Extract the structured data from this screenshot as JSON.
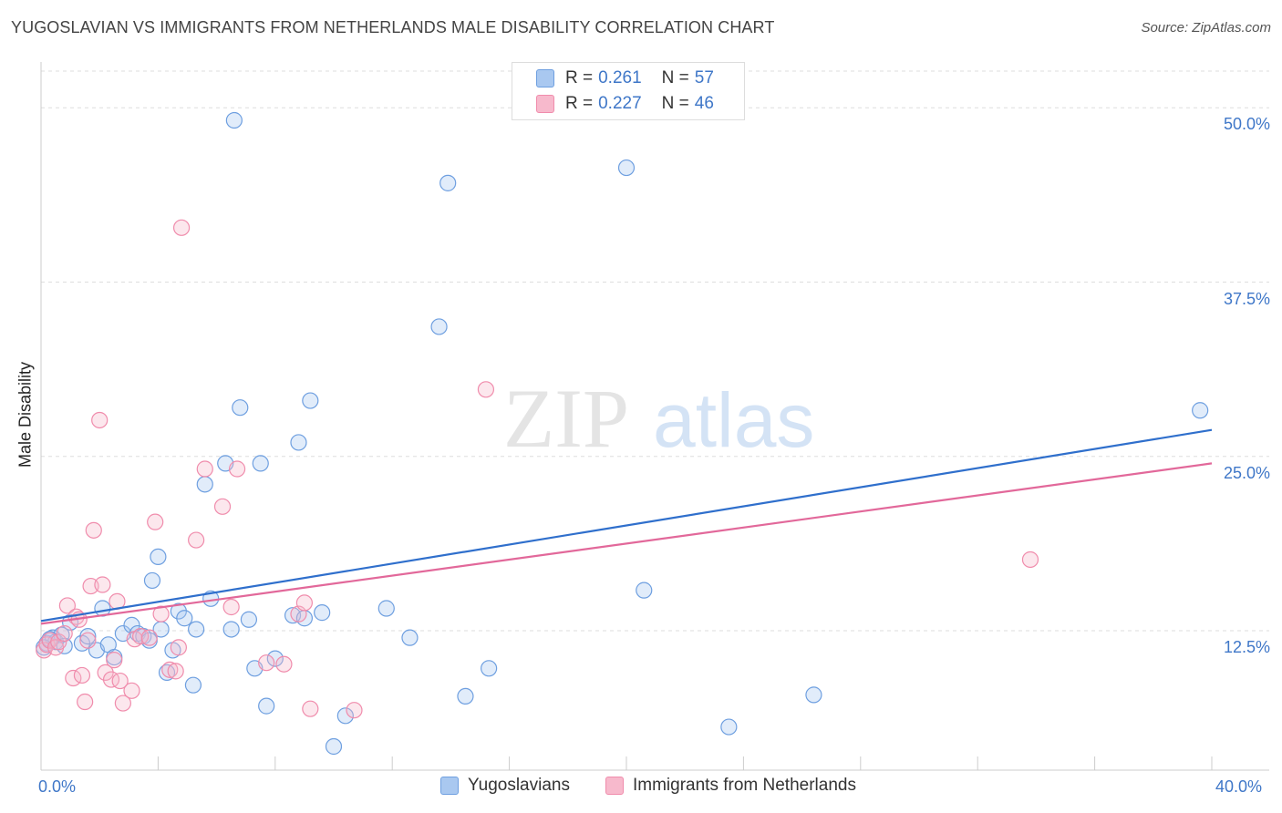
{
  "title": "YUGOSLAVIAN VS IMMIGRANTS FROM NETHERLANDS MALE DISABILITY CORRELATION CHART",
  "source": "Source: ZipAtlas.com",
  "watermark": {
    "zip": "ZIP",
    "atlas": "atlas"
  },
  "legend": {
    "r_label": "R =",
    "n_label": "N =",
    "rows": [
      {
        "r": "0.261",
        "n": "57",
        "color": "#a9c8f0"
      },
      {
        "r": "0.227",
        "n": "46",
        "color": "#f7b9cc"
      }
    ]
  },
  "chart_data": {
    "type": "scatter",
    "ylabel": "Male Disability",
    "xlim": [
      0,
      40
    ],
    "ylim": [
      2.5,
      52.5
    ],
    "x_tick_labels": [
      "0.0%",
      "40.0%"
    ],
    "y_ticks": [
      12.5,
      25.0,
      37.5,
      50.0
    ],
    "y_tick_labels": [
      "12.5%",
      "25.0%",
      "37.5%",
      "50.0%"
    ],
    "grid": true,
    "series": [
      {
        "name": "Yugoslavians",
        "color": "#6e9fe0",
        "line_color": "#2f6fcc",
        "trend": [
          [
            0,
            13.2
          ],
          [
            40,
            26.9
          ]
        ],
        "points": [
          [
            0.2,
            11.6
          ],
          [
            0.4,
            12.0
          ],
          [
            0.5,
            11.7
          ],
          [
            0.7,
            12.2
          ],
          [
            0.8,
            11.4
          ],
          [
            1.0,
            13.1
          ],
          [
            1.4,
            11.6
          ],
          [
            1.6,
            12.1
          ],
          [
            1.9,
            11.1
          ],
          [
            2.1,
            14.1
          ],
          [
            2.3,
            11.5
          ],
          [
            2.5,
            10.6
          ],
          [
            2.8,
            12.3
          ],
          [
            3.1,
            12.9
          ],
          [
            3.3,
            12.3
          ],
          [
            3.5,
            12.1
          ],
          [
            3.7,
            11.8
          ],
          [
            3.8,
            16.1
          ],
          [
            4.0,
            17.8
          ],
          [
            4.1,
            12.6
          ],
          [
            4.3,
            9.5
          ],
          [
            4.5,
            11.1
          ],
          [
            4.7,
            13.9
          ],
          [
            4.9,
            13.4
          ],
          [
            5.2,
            8.6
          ],
          [
            5.3,
            12.6
          ],
          [
            5.6,
            23.0
          ],
          [
            5.8,
            14.8
          ],
          [
            6.3,
            24.5
          ],
          [
            6.5,
            12.6
          ],
          [
            6.6,
            49.1
          ],
          [
            6.8,
            28.5
          ],
          [
            7.1,
            13.3
          ],
          [
            7.3,
            9.8
          ],
          [
            7.5,
            24.5
          ],
          [
            7.7,
            7.1
          ],
          [
            8.0,
            10.5
          ],
          [
            8.6,
            13.6
          ],
          [
            8.8,
            26.0
          ],
          [
            9.0,
            13.4
          ],
          [
            9.2,
            29.0
          ],
          [
            9.6,
            13.8
          ],
          [
            10.0,
            4.2
          ],
          [
            10.4,
            6.4
          ],
          [
            11.8,
            14.1
          ],
          [
            12.6,
            12.0
          ],
          [
            13.6,
            34.3
          ],
          [
            13.9,
            44.6
          ],
          [
            14.5,
            7.8
          ],
          [
            15.3,
            9.8
          ],
          [
            20.0,
            45.7
          ],
          [
            20.6,
            15.4
          ],
          [
            23.5,
            5.6
          ],
          [
            26.4,
            7.9
          ],
          [
            39.6,
            28.3
          ],
          [
            0.1,
            11.3
          ],
          [
            0.3,
            11.9
          ]
        ]
      },
      {
        "name": "Immigrants from Netherlands",
        "color": "#f08cac",
        "line_color": "#e2689a",
        "trend": [
          [
            0,
            13.0
          ],
          [
            40,
            24.5
          ]
        ],
        "points": [
          [
            0.1,
            11.1
          ],
          [
            0.2,
            11.5
          ],
          [
            0.3,
            11.8
          ],
          [
            0.5,
            11.3
          ],
          [
            0.6,
            11.7
          ],
          [
            0.8,
            12.3
          ],
          [
            0.9,
            14.3
          ],
          [
            1.1,
            9.1
          ],
          [
            1.2,
            13.5
          ],
          [
            1.3,
            13.3
          ],
          [
            1.4,
            9.3
          ],
          [
            1.5,
            7.4
          ],
          [
            1.6,
            11.8
          ],
          [
            1.7,
            15.7
          ],
          [
            1.8,
            19.7
          ],
          [
            2.0,
            27.6
          ],
          [
            2.1,
            15.8
          ],
          [
            2.2,
            9.5
          ],
          [
            2.4,
            9.0
          ],
          [
            2.5,
            10.4
          ],
          [
            2.6,
            14.6
          ],
          [
            2.7,
            8.9
          ],
          [
            2.8,
            7.3
          ],
          [
            3.1,
            8.2
          ],
          [
            3.2,
            11.9
          ],
          [
            3.4,
            12.1
          ],
          [
            3.7,
            12.0
          ],
          [
            3.9,
            20.3
          ],
          [
            4.1,
            13.7
          ],
          [
            4.4,
            9.7
          ],
          [
            4.6,
            9.6
          ],
          [
            4.7,
            11.3
          ],
          [
            4.8,
            41.4
          ],
          [
            5.3,
            19.0
          ],
          [
            5.6,
            24.1
          ],
          [
            6.2,
            21.4
          ],
          [
            6.5,
            14.2
          ],
          [
            6.7,
            24.1
          ],
          [
            7.7,
            10.2
          ],
          [
            8.3,
            10.1
          ],
          [
            8.8,
            13.7
          ],
          [
            9.0,
            14.5
          ],
          [
            9.2,
            6.9
          ],
          [
            10.7,
            6.8
          ],
          [
            15.2,
            29.8
          ],
          [
            33.8,
            17.6
          ]
        ]
      }
    ]
  },
  "bottom_legend": [
    {
      "label": "Yugoslavians",
      "color": "#a9c8f0"
    },
    {
      "label": "Immigrants from Netherlands",
      "color": "#f7b9cc"
    }
  ]
}
